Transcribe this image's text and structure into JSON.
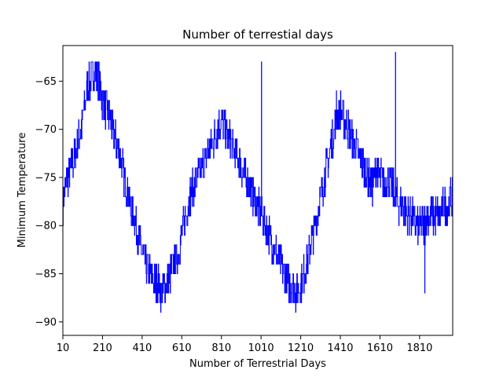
{
  "chart_data": {
    "type": "line",
    "title": "Number of terrestial days",
    "xlabel": "Number of Terrestrial Days",
    "ylabel": "Minimum Temperature",
    "xlim": [
      10,
      1977
    ],
    "ylim": [
      -91.4,
      -61.3
    ],
    "x_ticks": [
      10,
      210,
      410,
      610,
      810,
      1010,
      1210,
      1410,
      1610,
      1810
    ],
    "y_ticks": [
      -65,
      -70,
      -75,
      -80,
      -85,
      -90
    ],
    "grid": false,
    "line_color": "#0000ff",
    "series": [
      {
        "x": [
          10,
          30,
          50,
          70,
          90,
          110,
          130,
          150,
          170,
          190,
          210,
          230,
          250,
          270,
          290,
          310,
          330,
          350,
          370,
          390,
          410,
          430,
          450,
          470,
          490,
          510,
          530,
          550,
          570,
          590,
          610,
          630,
          650,
          670,
          690,
          710,
          730,
          750,
          770,
          790,
          810,
          830,
          850,
          870,
          890,
          910,
          930,
          950,
          970,
          990,
          1010,
          1030,
          1050,
          1070,
          1090,
          1110,
          1130,
          1150,
          1170,
          1190,
          1210,
          1230,
          1250,
          1270,
          1290,
          1310,
          1330,
          1350,
          1370,
          1390,
          1410,
          1430,
          1450,
          1470,
          1490,
          1510,
          1530,
          1550,
          1570,
          1590,
          1610,
          1630,
          1650,
          1670,
          1690,
          1710,
          1730,
          1750,
          1770,
          1790,
          1810,
          1830,
          1850,
          1870,
          1890,
          1910,
          1930,
          1950,
          1970
        ],
        "values": [
          -78,
          -75,
          -74,
          -73,
          -71,
          -69,
          -66,
          -65,
          -64,
          -65,
          -67,
          -68,
          -69,
          -71,
          -72,
          -74,
          -76,
          -78,
          -79,
          -81,
          -83,
          -84,
          -85,
          -86,
          -86,
          -87,
          -86,
          -85,
          -84,
          -83,
          -81,
          -79,
          -77,
          -76,
          -75,
          -74,
          -73,
          -72,
          -71,
          -70,
          -69,
          -70,
          -71,
          -72,
          -73,
          -74,
          -75,
          -76,
          -77,
          -78,
          -79,
          -80,
          -81,
          -82,
          -83,
          -84,
          -85,
          -86,
          -86,
          -87,
          -86,
          -85,
          -83,
          -81,
          -79,
          -77,
          -75,
          -73,
          -71,
          -69,
          -68,
          -69,
          -70,
          -71,
          -72,
          -73,
          -74,
          -75,
          -76,
          -74,
          -75,
          -76,
          -75,
          -76,
          -77,
          -78,
          -78,
          -79,
          -79,
          -80,
          -80,
          -80,
          -79,
          -79,
          -79,
          -79,
          -78,
          -78,
          -77
        ],
        "amplitude_noise": 2.0,
        "spikes": [
          {
            "x": 1012,
            "y": -63
          },
          {
            "x": 1390,
            "y": -66
          },
          {
            "x": 1688,
            "y": -62
          },
          {
            "x": 1836,
            "y": -87
          }
        ]
      }
    ]
  }
}
